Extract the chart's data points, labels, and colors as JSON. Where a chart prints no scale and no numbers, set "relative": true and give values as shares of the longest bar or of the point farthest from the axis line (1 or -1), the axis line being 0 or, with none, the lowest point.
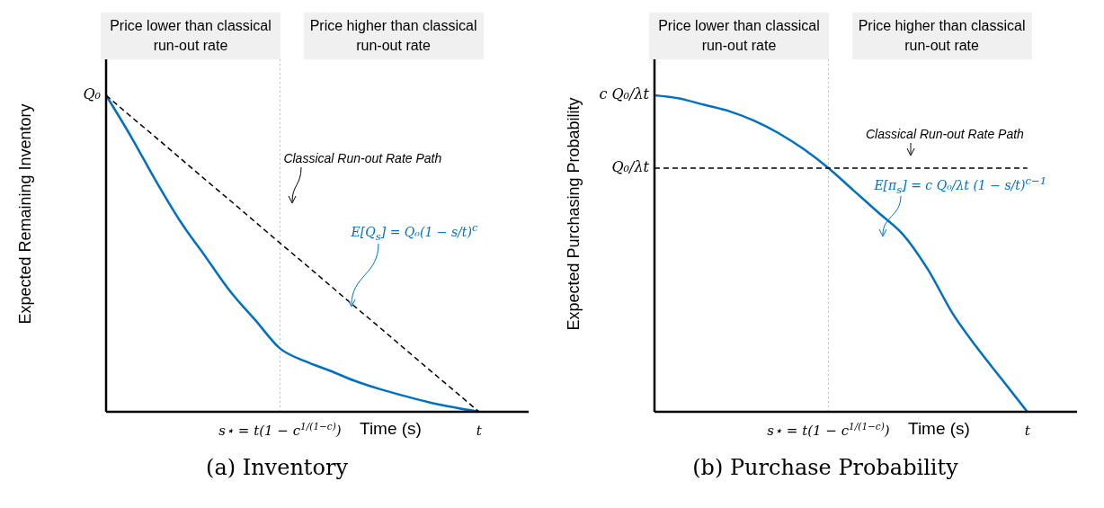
{
  "chart_data": [
    {
      "type": "line",
      "title": "(a) Inventory",
      "xlabel": "Time (s)",
      "ylabel": "Expected Remaining Inventory",
      "relative": true,
      "categories": [
        null,
        null,
        null,
        null,
        null,
        null,
        null,
        "s⋆ = t(1 − c$^{1/(1−c)}$)",
        null,
        null,
        null,
        null,
        null,
        null,
        null,
        "t",
        null,
        null
      ],
      "series": [
        {
          "name": "E[Q$_{s}$] = Q₀(1 − s/t)$^{c}$",
          "color": "#0070c0",
          "values": [
            1,
            0.87,
            0.73,
            0.6,
            0.49,
            0.38,
            0.29,
            0.2,
            0.16,
            0.13,
            0.098,
            0.072,
            0.05,
            0.03,
            0.014,
            0,
            null,
            null
          ]
        },
        {
          "name": "Classical Run-out Rate Path",
          "color": "#000000",
          "line_style": "dashed",
          "values": [
            1,
            0.933,
            0.867,
            0.8,
            0.733,
            0.667,
            0.6,
            0.533,
            0.467,
            0.4,
            0.333,
            0.267,
            0.2,
            0.133,
            0.067,
            0,
            null,
            null
          ]
        }
      ],
      "ref_lines": [
        {
          "axis": "x",
          "value": "s⋆ = t(1 − c$^{1/(1−c)}$)",
          "color": "#bfbfbf",
          "line_style": "dotted"
        }
      ],
      "annotations": [
        "Price lower than classical run-out rate",
        "Price higher than classical run-out rate",
        "Q₀"
      ]
    },
    {
      "type": "line",
      "title": "(b) Purchase Probability",
      "xlabel": "Time (s)",
      "ylabel": "Expected Purchasing Probability",
      "relative": true,
      "categories": [
        null,
        null,
        null,
        null,
        null,
        null,
        null,
        "s⋆ = t(1 − c$^{1/(1−c)}$)",
        null,
        null,
        null,
        null,
        null,
        null,
        null,
        "t",
        null,
        null
      ],
      "series": [
        {
          "name": "E[π$_{s}$] = c Q₀/λt (1 − s/t)$^{c−1}$",
          "color": "#0070c0",
          "values": [
            1,
            0.99,
            0.97,
            0.95,
            0.92,
            0.88,
            0.83,
            0.77,
            0.7,
            0.63,
            0.56,
            0.45,
            0.31,
            0.2,
            0.1,
            0,
            null,
            null
          ]
        },
        {
          "name": "Classical Run-out Rate Path",
          "color": "#000000",
          "line_style": "dashed",
          "values": [
            0.77,
            0.77,
            0.77,
            0.77,
            0.77,
            0.77,
            0.77,
            0.77,
            0.77,
            0.77,
            0.77,
            0.77,
            0.77,
            0.77,
            0.77,
            0.77,
            null,
            null
          ]
        }
      ],
      "ref_lines": [
        {
          "axis": "x",
          "value": "s⋆ = t(1 − c$^{1/(1−c)}$)",
          "color": "#bfbfbf",
          "line_style": "dotted"
        }
      ],
      "annotations": [
        "Price lower than classical run-out rate",
        "Price higher than classical run-out rate",
        "c Q₀/λt",
        "Q₀/λt"
      ]
    }
  ]
}
